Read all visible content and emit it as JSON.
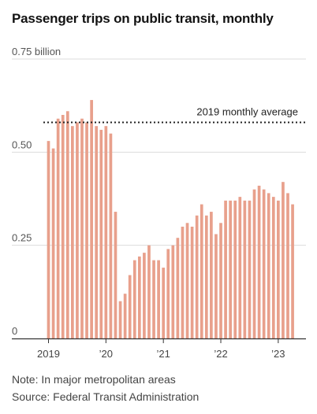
{
  "chart_data": {
    "type": "bar",
    "title": "Passenger trips on public transit, monthly",
    "ylabel": "",
    "xlabel": "",
    "y_tick_labels": [
      "0",
      "0.25",
      "0.50",
      "0.75 billion"
    ],
    "y_ticks": [
      0,
      0.25,
      0.5,
      0.75
    ],
    "ylim": [
      0,
      0.75
    ],
    "x_tick_labels": [
      "2019",
      "’20",
      "’21",
      "’22",
      "’23"
    ],
    "grid": true,
    "bar_color": "#e8a08c",
    "reference_line": {
      "label": "2019 monthly average",
      "value": 0.58
    },
    "categories": [
      "2019-01",
      "2019-02",
      "2019-03",
      "2019-04",
      "2019-05",
      "2019-06",
      "2019-07",
      "2019-08",
      "2019-09",
      "2019-10",
      "2019-11",
      "2019-12",
      "2020-01",
      "2020-02",
      "2020-03",
      "2020-04",
      "2020-05",
      "2020-06",
      "2020-07",
      "2020-08",
      "2020-09",
      "2020-10",
      "2020-11",
      "2020-12",
      "2021-01",
      "2021-02",
      "2021-03",
      "2021-04",
      "2021-05",
      "2021-06",
      "2021-07",
      "2021-08",
      "2021-09",
      "2021-10",
      "2021-11",
      "2021-12",
      "2022-01",
      "2022-02",
      "2022-03",
      "2022-04",
      "2022-05",
      "2022-06",
      "2022-07",
      "2022-08",
      "2022-09",
      "2022-10",
      "2022-11",
      "2022-12",
      "2023-01",
      "2023-02",
      "2023-03",
      "2023-04"
    ],
    "values": [
      0.53,
      0.51,
      0.59,
      0.6,
      0.61,
      0.57,
      0.58,
      0.59,
      0.58,
      0.64,
      0.57,
      0.56,
      0.57,
      0.55,
      0.34,
      0.1,
      0.12,
      0.17,
      0.21,
      0.22,
      0.23,
      0.25,
      0.21,
      0.21,
      0.19,
      0.24,
      0.25,
      0.27,
      0.3,
      0.31,
      0.3,
      0.33,
      0.36,
      0.33,
      0.34,
      0.28,
      0.31,
      0.37,
      0.37,
      0.37,
      0.38,
      0.37,
      0.37,
      0.4,
      0.41,
      0.4,
      0.39,
      0.38,
      0.37,
      0.42,
      0.39,
      0.36
    ]
  },
  "notes": {
    "note": "Note: In major metropolitan areas",
    "source": "Source: Federal Transit Administration"
  }
}
